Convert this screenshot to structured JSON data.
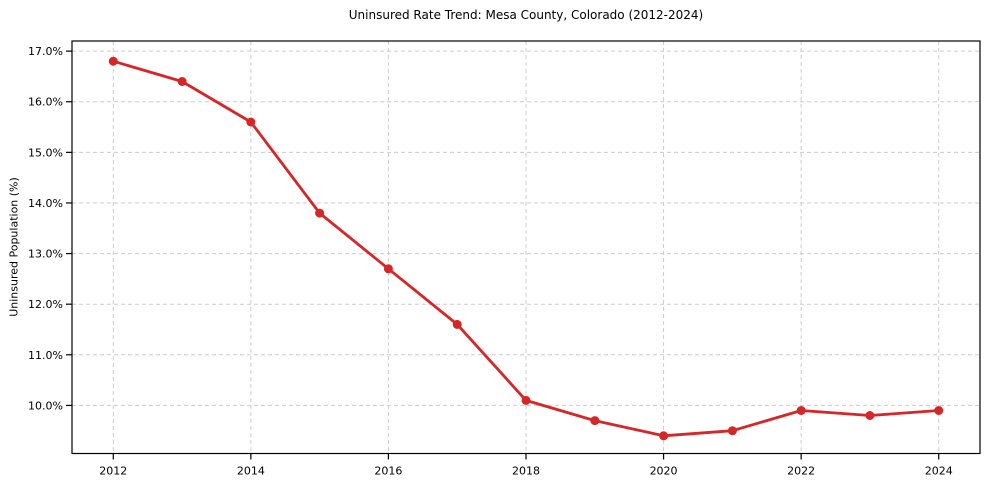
{
  "figure": {
    "title": "Uninsured Rate Trend: Mesa County, Colorado (2012-2024)",
    "ylabel": "Uninsured Population (%)"
  },
  "chart_data": {
    "type": "line",
    "title": "Uninsured Rate Trend: Mesa County, Colorado (2012-2024)",
    "xlabel": "",
    "ylabel": "Uninsured Population (%)",
    "x": [
      2012,
      2013,
      2014,
      2015,
      2016,
      2017,
      2018,
      2019,
      2020,
      2021,
      2022,
      2023,
      2024
    ],
    "series": [
      {
        "name": "Uninsured Rate",
        "values": [
          16.8,
          16.4,
          15.6,
          13.8,
          12.7,
          11.6,
          10.1,
          9.7,
          9.4,
          9.5,
          9.9,
          9.8,
          9.9
        ]
      }
    ],
    "xlim": [
      2011.4,
      2024.6
    ],
    "ylim": [
      9.05,
      17.2
    ],
    "xticks": [
      2012,
      2014,
      2016,
      2018,
      2020,
      2022,
      2024
    ],
    "yticks": [
      10.0,
      11.0,
      12.0,
      13.0,
      14.0,
      15.0,
      16.0,
      17.0
    ],
    "ytick_suffix": "%",
    "ytick_decimals": 1,
    "grid": true,
    "grid_style": "dashed",
    "legend_position": "none",
    "marker": "circle"
  },
  "style": {
    "line_color": "#d62728",
    "marker_color": "#d62728",
    "grid_color": "#cccccc",
    "spine_color": "#000000",
    "background_color": "#ffffff",
    "line_width": 2.8,
    "marker_radius": 4.5
  }
}
